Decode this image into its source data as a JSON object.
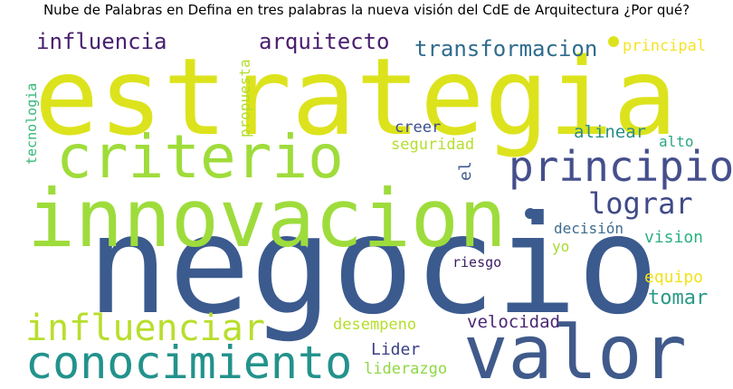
{
  "chart_data": {
    "type": "wordcloud",
    "title": "Nube de Palabras en Defina en tres palabras la nueva visión del CdE de Arquitectura ¿Por qué?",
    "words": [
      {
        "text": "negocio",
        "weight": 100,
        "color": "#3b5a8e"
      },
      {
        "text": "estrategia",
        "weight": 88,
        "color": "#dce31c"
      },
      {
        "text": "innovacion",
        "weight": 70,
        "color": "#9edc3c"
      },
      {
        "text": "valor",
        "weight": 60,
        "color": "#3f5a8b"
      },
      {
        "text": "criterio",
        "weight": 52,
        "color": "#9fdc3a"
      },
      {
        "text": "conocimiento",
        "weight": 42,
        "color": "#23928c"
      },
      {
        "text": "principio",
        "weight": 40,
        "color": "#454f8c"
      },
      {
        "text": "influenciar",
        "weight": 34,
        "color": "#b8de2c"
      },
      {
        "text": "lograr",
        "weight": 27,
        "color": "#3f4a88"
      },
      {
        "text": "transformacion",
        "weight": 21,
        "color": "#2f6c8e"
      },
      {
        "text": "arquitecto",
        "weight": 20,
        "color": "#4a1d6e"
      },
      {
        "text": "influencia",
        "weight": 20,
        "color": "#47206f"
      },
      {
        "text": "tomar",
        "weight": 18,
        "color": "#2a9a88"
      },
      {
        "text": "velocidad",
        "weight": 16,
        "color": "#4b2874"
      },
      {
        "text": "alinear",
        "weight": 16,
        "color": "#2a8e8a"
      },
      {
        "text": "desempeno",
        "weight": 15,
        "color": "#b6de2a"
      },
      {
        "text": "vision",
        "weight": 15,
        "color": "#2ab07f"
      },
      {
        "text": "equipo",
        "weight": 15,
        "color": "#f2e21c"
      },
      {
        "text": "principal",
        "weight": 15,
        "color": "#f5e32a"
      },
      {
        "text": "Lider",
        "weight": 15,
        "color": "#3a3f86"
      },
      {
        "text": "liderazgo",
        "weight": 15,
        "color": "#8fd744"
      },
      {
        "text": "creer",
        "weight": 15,
        "color": "#3c4f8a"
      },
      {
        "text": "seguridad",
        "weight": 15,
        "color": "#b5de2b"
      },
      {
        "text": "alto",
        "weight": 14,
        "color": "#2aa784"
      },
      {
        "text": "decisión",
        "weight": 14,
        "color": "#3d6b8e"
      },
      {
        "text": "riesgo",
        "weight": 13,
        "color": "#3b1c62"
      },
      {
        "text": "yo",
        "weight": 13,
        "color": "#a8db34"
      },
      {
        "text": "el",
        "weight": 15,
        "color": "#3f5a8b"
      },
      {
        "text": "propuesta",
        "weight": 14,
        "color": "#b0dd2f"
      },
      {
        "text": "tecnologia",
        "weight": 13,
        "color": "#35b779"
      }
    ]
  }
}
